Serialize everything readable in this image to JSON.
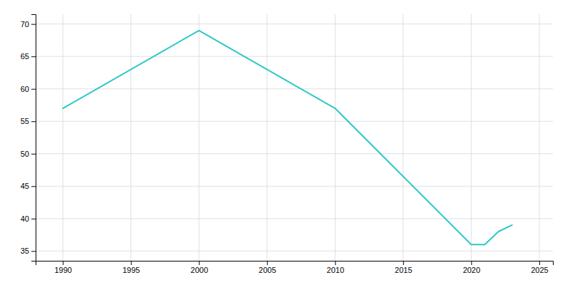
{
  "chart_data": {
    "type": "line",
    "x": [
      1990,
      2000,
      2010,
      2020,
      2021,
      2022,
      2023
    ],
    "values": [
      57,
      69,
      57,
      36,
      36,
      38,
      39
    ],
    "color": "#2ec8c8",
    "xlim": [
      1988,
      2026
    ],
    "ylim": [
      33.5,
      71.5
    ],
    "xticks": [
      1990,
      1995,
      2000,
      2005,
      2010,
      2015,
      2020,
      2025
    ],
    "yticks": [
      35,
      40,
      45,
      50,
      55,
      60,
      65,
      70
    ],
    "grid": true
  }
}
